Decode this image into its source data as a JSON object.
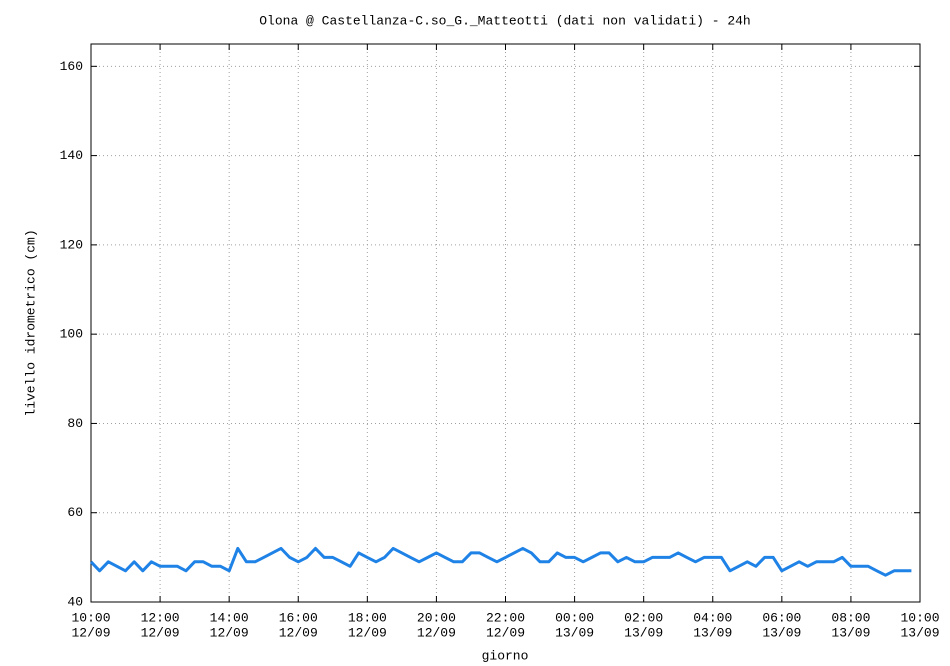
{
  "chart_data": {
    "type": "line",
    "title": "Olona @ Castellanza-C.so_G._Matteotti (dati non validati) - 24h",
    "xlabel": "giorno",
    "ylabel": "livello idrometrico (cm)",
    "color": "#1f82e6",
    "grid": true,
    "ylim": [
      40,
      165
    ],
    "yticks": [
      40,
      60,
      80,
      100,
      120,
      140,
      160
    ],
    "xlim": [
      "12/09 10:00",
      "13/09 10:00"
    ],
    "xticks": [
      {
        "time": "10:00",
        "date": "12/09"
      },
      {
        "time": "12:00",
        "date": "12/09"
      },
      {
        "time": "14:00",
        "date": "12/09"
      },
      {
        "time": "16:00",
        "date": "12/09"
      },
      {
        "time": "18:00",
        "date": "12/09"
      },
      {
        "time": "20:00",
        "date": "12/09"
      },
      {
        "time": "22:00",
        "date": "12/09"
      },
      {
        "time": "00:00",
        "date": "13/09"
      },
      {
        "time": "02:00",
        "date": "13/09"
      },
      {
        "time": "04:00",
        "date": "13/09"
      },
      {
        "time": "06:00",
        "date": "13/09"
      },
      {
        "time": "08:00",
        "date": "13/09"
      },
      {
        "time": "10:00",
        "date": "13/09"
      }
    ],
    "x": [
      "12/09 10:00",
      "12/09 10:15",
      "12/09 10:30",
      "12/09 10:45",
      "12/09 11:00",
      "12/09 11:15",
      "12/09 11:30",
      "12/09 11:45",
      "12/09 12:00",
      "12/09 12:15",
      "12/09 12:30",
      "12/09 12:45",
      "12/09 13:00",
      "12/09 13:15",
      "12/09 13:30",
      "12/09 13:45",
      "12/09 14:00",
      "12/09 14:15",
      "12/09 14:30",
      "12/09 14:45",
      "12/09 15:00",
      "12/09 15:15",
      "12/09 15:30",
      "12/09 15:45",
      "12/09 16:00",
      "12/09 16:15",
      "12/09 16:30",
      "12/09 16:45",
      "12/09 17:00",
      "12/09 17:15",
      "12/09 17:30",
      "12/09 17:45",
      "12/09 18:00",
      "12/09 18:15",
      "12/09 18:30",
      "12/09 18:45",
      "12/09 19:00",
      "12/09 19:15",
      "12/09 19:30",
      "12/09 19:45",
      "12/09 20:00",
      "12/09 20:15",
      "12/09 20:30",
      "12/09 20:45",
      "12/09 21:00",
      "12/09 21:15",
      "12/09 21:30",
      "12/09 21:45",
      "12/09 22:00",
      "12/09 22:15",
      "12/09 22:30",
      "12/09 22:45",
      "12/09 23:00",
      "12/09 23:15",
      "12/09 23:30",
      "12/09 23:45",
      "13/09 00:00",
      "13/09 00:15",
      "13/09 00:30",
      "13/09 00:45",
      "13/09 01:00",
      "13/09 01:15",
      "13/09 01:30",
      "13/09 01:45",
      "13/09 02:00",
      "13/09 02:15",
      "13/09 02:30",
      "13/09 02:45",
      "13/09 03:00",
      "13/09 03:15",
      "13/09 03:30",
      "13/09 03:45",
      "13/09 04:00",
      "13/09 04:15",
      "13/09 04:30",
      "13/09 04:45",
      "13/09 05:00",
      "13/09 05:15",
      "13/09 05:30",
      "13/09 05:45",
      "13/09 06:00",
      "13/09 06:15",
      "13/09 06:30",
      "13/09 06:45",
      "13/09 07:00",
      "13/09 07:15",
      "13/09 07:30",
      "13/09 07:45",
      "13/09 08:00",
      "13/09 08:15",
      "13/09 08:30",
      "13/09 08:45",
      "13/09 09:00",
      "13/09 09:15",
      "13/09 09:30",
      "13/09 09:45"
    ],
    "values": [
      49,
      47,
      49,
      48,
      47,
      49,
      47,
      49,
      48,
      48,
      48,
      47,
      49,
      49,
      48,
      48,
      47,
      52,
      49,
      49,
      50,
      51,
      52,
      50,
      49,
      50,
      52,
      50,
      50,
      49,
      48,
      51,
      50,
      49,
      50,
      52,
      51,
      50,
      49,
      50,
      51,
      50,
      49,
      49,
      51,
      51,
      50,
      49,
      50,
      51,
      52,
      51,
      49,
      49,
      51,
      50,
      50,
      49,
      50,
      51,
      51,
      49,
      50,
      49,
      49,
      50,
      50,
      50,
      51,
      50,
      49,
      50,
      50,
      50,
      47,
      48,
      49,
      48,
      50,
      50,
      47,
      48,
      49,
      48,
      49,
      49,
      49,
      50,
      48,
      48,
      48,
      47,
      46,
      47,
      47,
      47
    ]
  }
}
